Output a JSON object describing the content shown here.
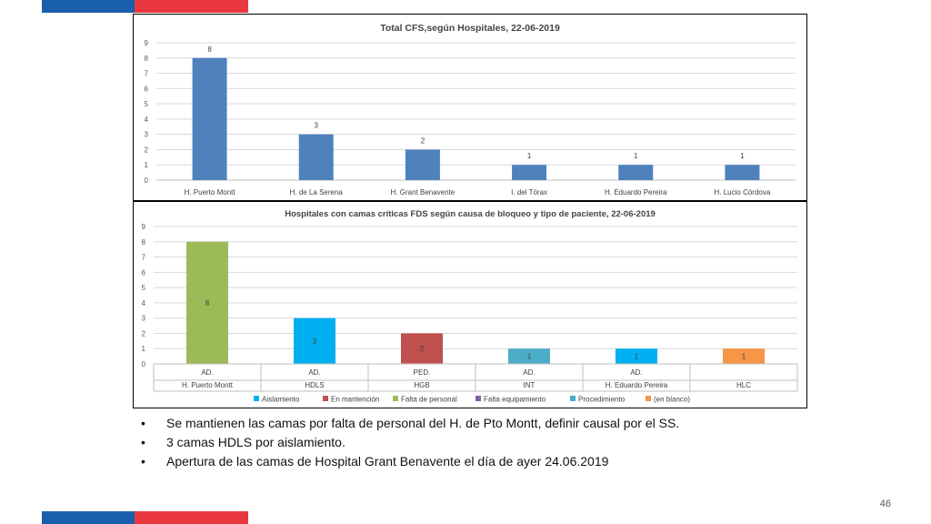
{
  "brand": {
    "blue": "#1a5fab",
    "red": "#e8383d"
  },
  "chart_data": [
    {
      "type": "bar",
      "title": "Total CFS,según Hospitales, 22-06-2019",
      "categories": [
        "H. Puerto Montt",
        "H. de La Serena",
        "H. Grant Benavente",
        "I. del Tórax",
        "H. Eduardo Pereira",
        "H. Lucio Córdova"
      ],
      "values": [
        8,
        3,
        2,
        1,
        1,
        1
      ],
      "color": "#4f81bd",
      "ylim": [
        0,
        9
      ],
      "yticks": [
        "0",
        "1",
        "2",
        "3",
        "4",
        "5",
        "6",
        "7",
        "8",
        "9"
      ],
      "grid": true
    },
    {
      "type": "bar",
      "title": "Hospitales con camas críticas FDS según causa de bloqueo y tipo de paciente, 22-06-2019",
      "categories": [
        {
          "type": "AD.",
          "hospital": "H. Puerto Montt"
        },
        {
          "type": "AD.",
          "hospital": "HDLS"
        },
        {
          "type": "PED.",
          "hospital": "HGB"
        },
        {
          "type": "AD.",
          "hospital": "INT"
        },
        {
          "type": "AD.",
          "hospital": "H. Eduardo Pereira"
        },
        {
          "type": "",
          "hospital": "HLC"
        }
      ],
      "values": [
        8,
        3,
        2,
        1,
        1,
        1
      ],
      "bar_series": [
        "Falta de personal",
        "Aislamiento",
        "En mantención",
        "Procedimiento",
        "Aislamiento",
        "(en blanco)"
      ],
      "series": [
        {
          "name": "Aislamiento",
          "color": "#00b0f0"
        },
        {
          "name": "En mantención",
          "color": "#c0504d"
        },
        {
          "name": "Falta de personal",
          "color": "#9bbb59"
        },
        {
          "name": "Falta equipamiento",
          "color": "#8064a2"
        },
        {
          "name": "Procedimiento",
          "color": "#4bacc6"
        },
        {
          "name": "(en blanco)",
          "color": "#f79646"
        }
      ],
      "ylim": [
        0,
        9
      ],
      "yticks": [
        "0",
        "1",
        "2",
        "3",
        "4",
        "5",
        "6",
        "7",
        "8",
        "9"
      ],
      "grid": true,
      "legend": "bottom"
    }
  ],
  "bullets": [
    "Se mantienen las camas por falta de personal del H. de Pto Montt, definir causal por el SS.",
    "3 camas HDLS por aislamiento.",
    "Apertura de las camas de Hospital Grant Benavente el día de ayer 24.06.2019"
  ],
  "bullet_symbol": "•",
  "page_number": "46"
}
